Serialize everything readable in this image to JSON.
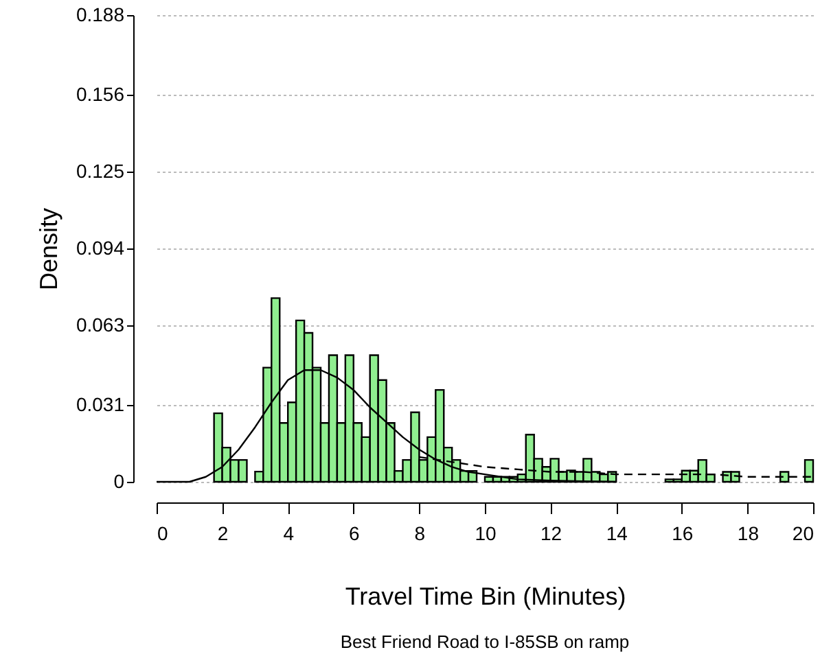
{
  "chart_data": {
    "type": "histogram",
    "xlabel": "Travel Time Bin (Minutes)",
    "ylabel": "Density",
    "annotations": [
      "Best Friend Road to I-85SB on ramp"
    ],
    "xlim": [
      0,
      20
    ],
    "xticks": [
      0,
      2,
      4,
      6,
      8,
      10,
      12,
      14,
      16,
      18,
      20
    ],
    "ylim": [
      0,
      0.188
    ],
    "yticks": [
      0,
      0.031,
      0.063,
      0.094,
      0.125,
      0.156,
      0.188
    ],
    "grid": "y",
    "series": [
      {
        "color": "#90ee90",
        "bins": [
          1.75,
          2,
          2.25,
          2.5,
          2.75,
          3,
          3.25,
          3.5,
          3.75,
          4,
          4.25,
          4.5,
          4.75,
          5,
          5.25,
          5.5,
          5.75,
          6,
          6.25,
          6.5,
          6.75,
          7,
          7.25,
          7.5,
          7.75,
          8,
          8.25,
          8.5,
          8.75,
          9,
          9.25,
          9.5,
          9.75,
          10,
          10.25,
          10.5,
          10.75,
          11,
          11.25,
          11.5,
          11.75,
          12,
          12.25,
          12.5,
          12.75,
          13,
          13.25,
          13.5,
          13.75,
          14,
          14.25,
          14.5,
          14.75,
          15,
          15.25,
          15.5,
          15.75,
          16,
          16.25,
          16.5,
          16.75,
          17,
          17.25,
          17.5,
          17.75,
          18,
          18.25,
          18.5,
          18.75,
          19,
          19.25,
          19.5,
          19.75,
          20
        ],
        "values": [
          0.0276,
          0.0138,
          0.0088,
          0.0088,
          0,
          0.0041,
          0.046,
          0.074,
          0.0237,
          0.032,
          0.065,
          0.06,
          0.046,
          0.0237,
          0.051,
          0.0237,
          0.051,
          0.0237,
          0.018,
          0.051,
          0.041,
          0.0237,
          0.0044,
          0.0088,
          0.028,
          0.0088,
          0.018,
          0.037,
          0.0138,
          0.0088,
          0.0044,
          0.0044,
          0,
          0.002,
          0.002,
          0.002,
          0.002,
          0.003,
          0.019,
          0.0093,
          0.006,
          0.0093,
          0.004,
          0.0046,
          0.004,
          0.0093,
          0.004,
          0.003,
          0.004,
          0,
          0,
          0,
          0,
          0,
          0,
          0.001,
          0.001,
          0.0045,
          0.0045,
          0.0088,
          0.003,
          0,
          0.004,
          0.004,
          0,
          0,
          0,
          0,
          0,
          0.004,
          0,
          0,
          0.0088
        ]
      },
      {
        "type": "line",
        "color": "#000000",
        "line_style": "solid",
        "x": [
          0,
          1,
          1.5,
          2,
          2.5,
          3,
          3.5,
          4,
          4.5,
          5,
          5.5,
          6,
          6.5,
          7,
          7.5,
          8,
          8.5,
          9,
          9.5,
          10,
          11,
          12,
          13,
          14
        ],
        "values": [
          0,
          0,
          0.002,
          0.006,
          0.013,
          0.022,
          0.032,
          0.041,
          0.045,
          0.045,
          0.042,
          0.037,
          0.03,
          0.024,
          0.018,
          0.013,
          0.009,
          0.006,
          0.004,
          0.003,
          0.001,
          0.0005,
          0.0002,
          0
        ]
      },
      {
        "type": "line",
        "color": "#000000",
        "line_style": "dashed",
        "x": [
          8,
          9,
          10,
          11,
          12,
          13,
          14,
          15,
          16,
          17,
          18,
          19,
          20
        ],
        "values": [
          0.01,
          0.008,
          0.006,
          0.005,
          0.004,
          0.004,
          0.003,
          0.003,
          0.003,
          0.003,
          0.002,
          0.002,
          0.002
        ]
      }
    ]
  }
}
